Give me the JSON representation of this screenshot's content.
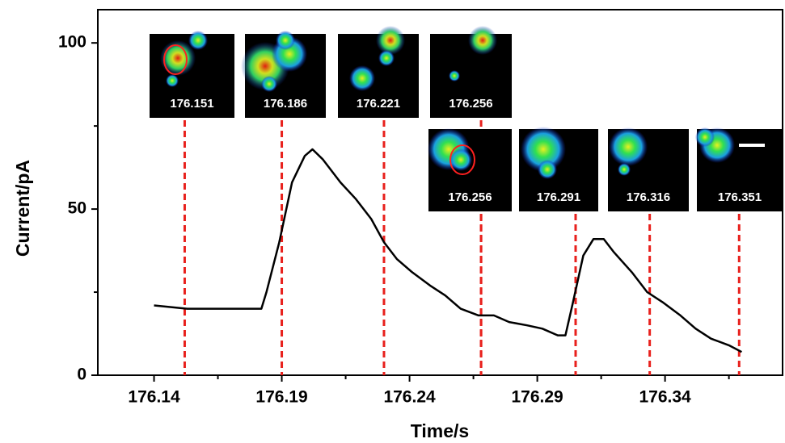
{
  "chart_data": {
    "type": "line",
    "xlabel": "Time/s",
    "ylabel": "Current/pA",
    "xlim": [
      176.118,
      176.386
    ],
    "ylim": [
      0,
      110
    ],
    "xticks": [
      176.14,
      176.19,
      176.24,
      176.29,
      176.34
    ],
    "xminor": [
      176.165,
      176.215,
      176.265,
      176.315,
      176.365
    ],
    "yticks": [
      0,
      50,
      100
    ],
    "yminor": [
      25,
      75
    ],
    "series": [
      {
        "color": "#000000",
        "x": [
          176.14,
          176.153,
          176.165,
          176.175,
          176.182,
          176.184,
          176.189,
          176.194,
          176.199,
          176.202,
          176.206,
          176.213,
          176.219,
          176.225,
          176.23,
          176.235,
          176.241,
          176.248,
          176.254,
          176.26,
          176.267,
          176.273,
          176.279,
          176.286,
          176.292,
          176.298,
          176.301,
          176.304,
          176.308,
          176.312,
          176.316,
          176.32,
          176.327,
          176.333,
          176.339,
          176.346,
          176.352,
          176.358,
          176.365,
          176.37
        ],
        "values": [
          21,
          20,
          20,
          20,
          20,
          25,
          40,
          58,
          66,
          68,
          65,
          58,
          53,
          47,
          40,
          35,
          31,
          27,
          24,
          20,
          18,
          18,
          16,
          15,
          14,
          12,
          12,
          22,
          36,
          41,
          41,
          37,
          31,
          25,
          22,
          18,
          14,
          11,
          9,
          7
        ]
      }
    ],
    "marker_color": "#e8201c",
    "markers": [
      {
        "x": 176.152,
        "label": "176.151"
      },
      {
        "x": 176.19,
        "label": "176.186"
      },
      {
        "x": 176.23,
        "label": "176.221"
      },
      {
        "x": 176.268,
        "label": "176.256"
      },
      {
        "x": 176.268,
        "label": "176.256"
      },
      {
        "x": 176.305,
        "label": "176.291"
      },
      {
        "x": 176.334,
        "label": "176.316"
      },
      {
        "x": 176.369,
        "label": "176.351"
      }
    ]
  }
}
